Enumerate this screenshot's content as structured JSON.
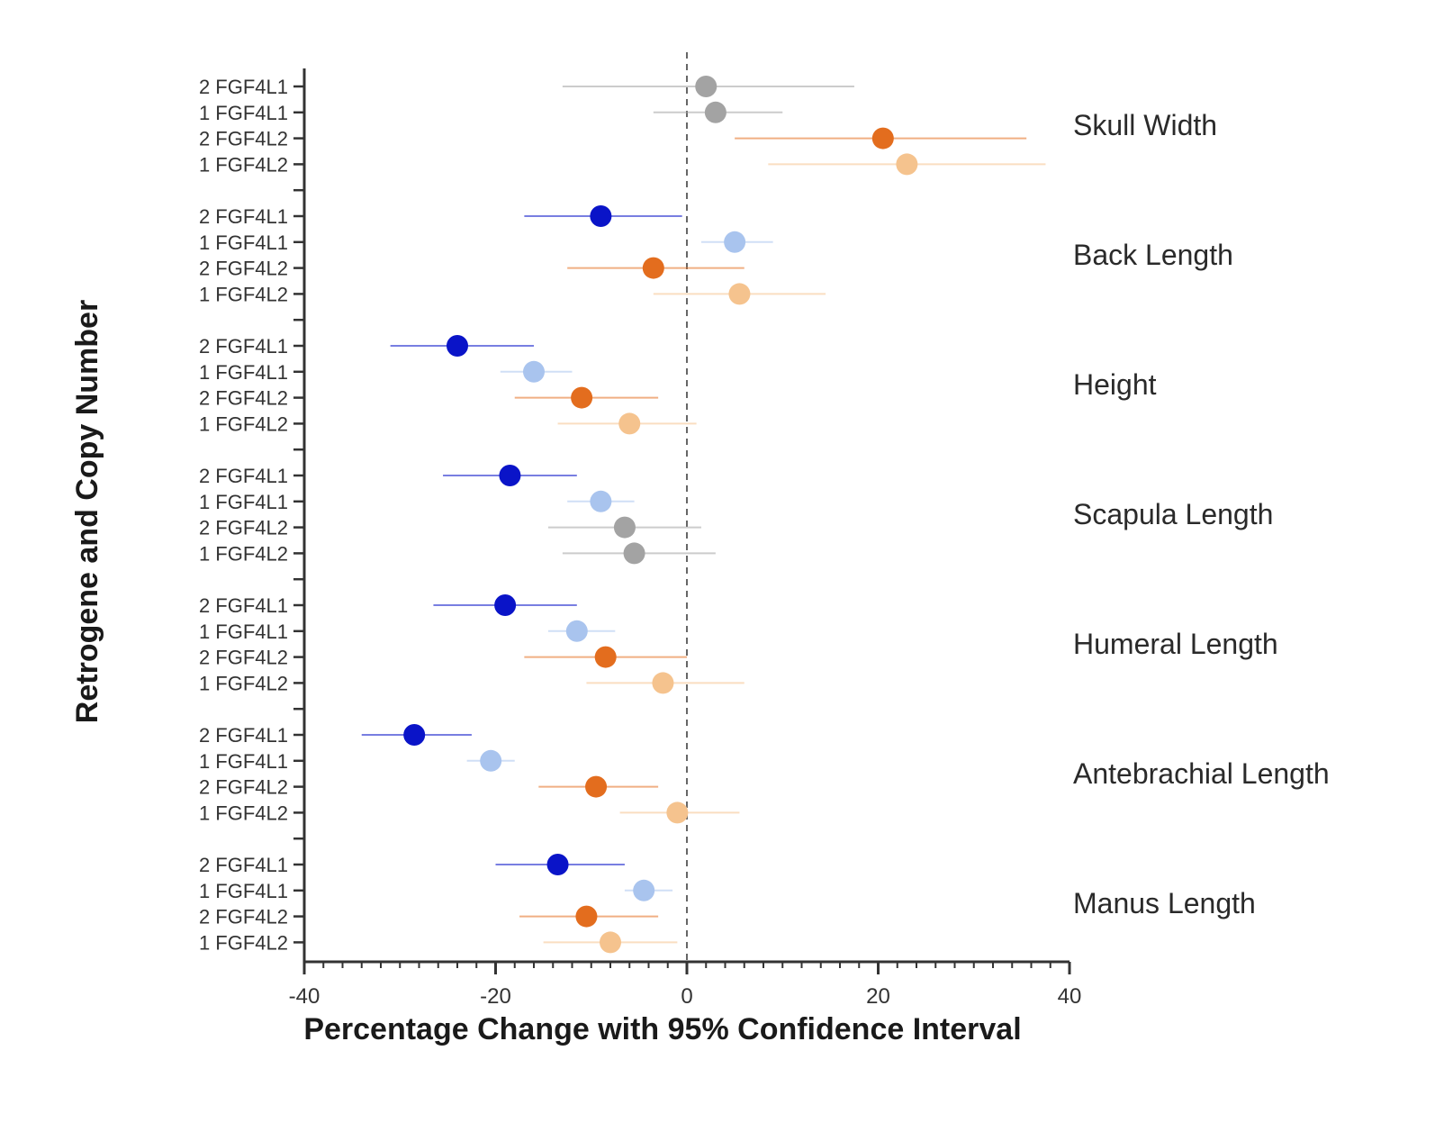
{
  "chart_data": {
    "type": "scatter",
    "subtype": "forest-plot",
    "xlabel": "Percentage Change with 95% Confidence Interval",
    "ylabel": "Retrogene and Copy Number",
    "xlim": [
      -40,
      40
    ],
    "xticks": [
      -40,
      -20,
      0,
      20,
      40
    ],
    "reference_line": 0,
    "row_labels": [
      "2 FGF4L1",
      "1 FGF4L1",
      "2 FGF4L2",
      "1 FGF4L2"
    ],
    "colors": {
      "dark_blue": "#0a14c8",
      "light_blue": "#a9c4ee",
      "dark_orange": "#e36d1e",
      "light_orange": "#f5c38e",
      "gray": "#a3a3a3"
    },
    "groups": [
      {
        "name": "Skull Width",
        "rows": [
          {
            "label": "2 FGF4L1",
            "value": 2,
            "ci": [
              -13,
              17.5
            ],
            "color": "gray"
          },
          {
            "label": "1 FGF4L1",
            "value": 3,
            "ci": [
              -3.5,
              10
            ],
            "color": "gray"
          },
          {
            "label": "2 FGF4L2",
            "value": 20.5,
            "ci": [
              5,
              35.5
            ],
            "color": "dark_orange"
          },
          {
            "label": "1 FGF4L2",
            "value": 23,
            "ci": [
              8.5,
              37.5
            ],
            "color": "light_orange"
          }
        ]
      },
      {
        "name": "Back Length",
        "rows": [
          {
            "label": "2 FGF4L1",
            "value": -9,
            "ci": [
              -17,
              -0.5
            ],
            "color": "dark_blue"
          },
          {
            "label": "1 FGF4L1",
            "value": 5,
            "ci": [
              1.5,
              9
            ],
            "color": "light_blue"
          },
          {
            "label": "2 FGF4L2",
            "value": -3.5,
            "ci": [
              -12.5,
              6
            ],
            "color": "dark_orange"
          },
          {
            "label": "1 FGF4L2",
            "value": 5.5,
            "ci": [
              -3.5,
              14.5
            ],
            "color": "light_orange"
          }
        ]
      },
      {
        "name": "Height",
        "rows": [
          {
            "label": "2 FGF4L1",
            "value": -24,
            "ci": [
              -31,
              -16
            ],
            "color": "dark_blue"
          },
          {
            "label": "1 FGF4L1",
            "value": -16,
            "ci": [
              -19.5,
              -12
            ],
            "color": "light_blue"
          },
          {
            "label": "2 FGF4L2",
            "value": -11,
            "ci": [
              -18,
              -3
            ],
            "color": "dark_orange"
          },
          {
            "label": "1 FGF4L2",
            "value": -6,
            "ci": [
              -13.5,
              1
            ],
            "color": "light_orange"
          }
        ]
      },
      {
        "name": "Scapula Length",
        "rows": [
          {
            "label": "2 FGF4L1",
            "value": -18.5,
            "ci": [
              -25.5,
              -11.5
            ],
            "color": "dark_blue"
          },
          {
            "label": "1 FGF4L1",
            "value": -9,
            "ci": [
              -12.5,
              -5.5
            ],
            "color": "light_blue"
          },
          {
            "label": "2 FGF4L2",
            "value": -6.5,
            "ci": [
              -14.5,
              1.5
            ],
            "color": "gray"
          },
          {
            "label": "1 FGF4L2",
            "value": -5.5,
            "ci": [
              -13,
              3
            ],
            "color": "gray"
          }
        ]
      },
      {
        "name": "Humeral Length",
        "rows": [
          {
            "label": "2 FGF4L1",
            "value": -19,
            "ci": [
              -26.5,
              -11.5
            ],
            "color": "dark_blue"
          },
          {
            "label": "1 FGF4L1",
            "value": -11.5,
            "ci": [
              -14.5,
              -7.5
            ],
            "color": "light_blue"
          },
          {
            "label": "2 FGF4L2",
            "value": -8.5,
            "ci": [
              -17,
              0
            ],
            "color": "dark_orange"
          },
          {
            "label": "1 FGF4L2",
            "value": -2.5,
            "ci": [
              -10.5,
              6
            ],
            "color": "light_orange"
          }
        ]
      },
      {
        "name": "Antebrachial Length",
        "rows": [
          {
            "label": "2 FGF4L1",
            "value": -28.5,
            "ci": [
              -34,
              -22.5
            ],
            "color": "dark_blue"
          },
          {
            "label": "1 FGF4L1",
            "value": -20.5,
            "ci": [
              -23,
              -18
            ],
            "color": "light_blue"
          },
          {
            "label": "2 FGF4L2",
            "value": -9.5,
            "ci": [
              -15.5,
              -3
            ],
            "color": "dark_orange"
          },
          {
            "label": "1 FGF4L2",
            "value": -1,
            "ci": [
              -7,
              5.5
            ],
            "color": "light_orange"
          }
        ]
      },
      {
        "name": "Manus Length",
        "rows": [
          {
            "label": "2 FGF4L1",
            "value": -13.5,
            "ci": [
              -20,
              -6.5
            ],
            "color": "dark_blue"
          },
          {
            "label": "1 FGF4L1",
            "value": -4.5,
            "ci": [
              -6.5,
              -1.5
            ],
            "color": "light_blue"
          },
          {
            "label": "2 FGF4L2",
            "value": -10.5,
            "ci": [
              -17.5,
              -3
            ],
            "color": "dark_orange"
          },
          {
            "label": "1 FGF4L2",
            "value": -8,
            "ci": [
              -15,
              -1
            ],
            "color": "light_orange"
          }
        ]
      }
    ]
  }
}
